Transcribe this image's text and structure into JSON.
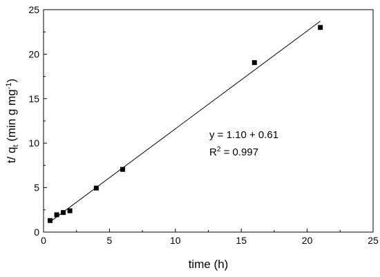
{
  "chart_data": {
    "type": "scatter",
    "xlabel": "time (h)",
    "ylabel_parts": {
      "main": "t/ q",
      "sub": "t",
      "unit_open": " (min g mg",
      "sup": "-1",
      "unit_close": ")"
    },
    "xlim": [
      0,
      25
    ],
    "ylim": [
      0,
      25
    ],
    "xticks": [
      0,
      5,
      10,
      15,
      20,
      25
    ],
    "yticks": [
      0,
      5,
      10,
      15,
      20,
      25
    ],
    "xtick_labels": [
      "0",
      "5",
      "10",
      "15",
      "20",
      "25"
    ],
    "ytick_labels": [
      "0",
      "5",
      "10",
      "15",
      "20",
      "25"
    ],
    "grid": false,
    "legend": "none",
    "series": [
      {
        "marker": "square",
        "color": "#000000",
        "points": [
          {
            "x": 0.5,
            "y": 1.3
          },
          {
            "x": 1.0,
            "y": 1.95
          },
          {
            "x": 1.5,
            "y": 2.2
          },
          {
            "x": 2.0,
            "y": 2.4
          },
          {
            "x": 4.0,
            "y": 4.95
          },
          {
            "x": 6.0,
            "y": 7.05
          },
          {
            "x": 16.0,
            "y": 19.05
          },
          {
            "x": 21.0,
            "y": 23.0
          }
        ]
      }
    ],
    "fit_line": {
      "slope": 1.1,
      "intercept": 0.61,
      "x_range": [
        0.5,
        21.0
      ],
      "color": "#000000"
    },
    "annotations": {
      "equation": "y = 1.10 + 0.61",
      "r2_prefix": "R",
      "r2_sup": "2",
      "r2_value": " = 0.997"
    }
  }
}
